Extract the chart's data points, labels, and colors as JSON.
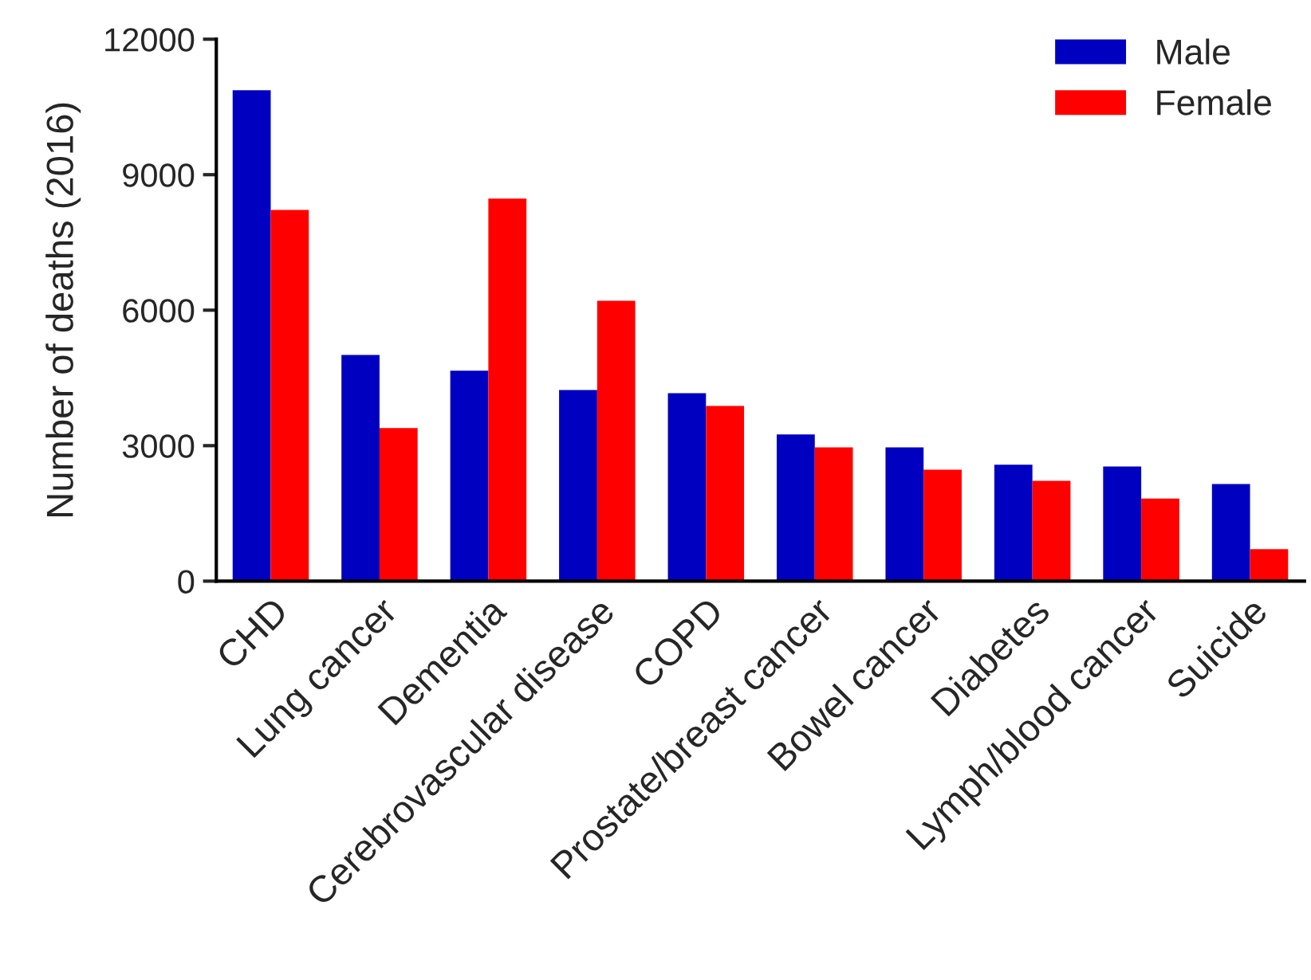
{
  "chart_data": {
    "type": "bar",
    "ylabel": "Number of deaths (2016)",
    "categories": [
      "CHD",
      "Lung cancer",
      "Dementia",
      "Cerebrovascular disease",
      "COPD",
      "Prostate/breast cancer",
      "Bowel cancer",
      "Diabetes",
      "Lymph/blood cancer",
      "Suicide"
    ],
    "series": [
      {
        "name": "Male",
        "color": "#0000c0",
        "values": [
          10870,
          5010,
          4660,
          4230,
          4160,
          3250,
          2960,
          2580,
          2540,
          2150
        ]
      },
      {
        "name": "Female",
        "color": "#ff0000",
        "values": [
          8220,
          3390,
          8470,
          6210,
          3880,
          2960,
          2470,
          2220,
          1830,
          710
        ]
      }
    ],
    "ylim": [
      0,
      12000
    ],
    "yticks": [
      0,
      3000,
      6000,
      9000,
      12000
    ],
    "grid": false,
    "legend": "top right"
  }
}
